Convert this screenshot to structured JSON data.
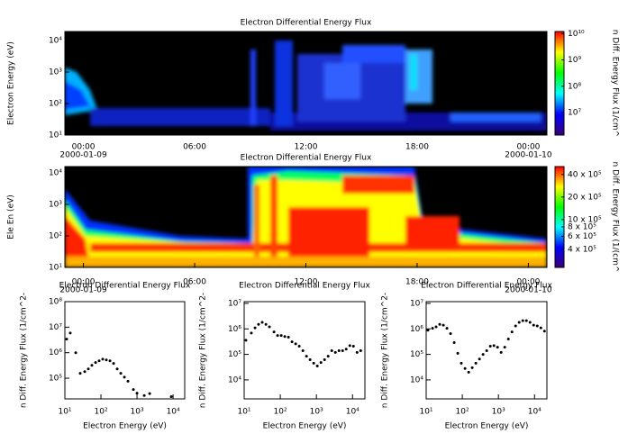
{
  "chart_data": [
    {
      "type": "spectrogram",
      "title": "Electron Differential Energy Flux",
      "y_label": "Electron Energy (eV)",
      "xlim": [
        -1,
        25
      ],
      "xticks": [
        {
          "value": 0,
          "label": "00:00"
        },
        {
          "value": 6,
          "label": "06:00"
        },
        {
          "value": 12,
          "label": "12:00"
        },
        {
          "value": 18,
          "label": "18:00"
        },
        {
          "value": 24,
          "label": "00:00"
        }
      ],
      "xtick_dates": [
        {
          "value": 0,
          "label": "2000-01-09"
        },
        {
          "value": 24,
          "label": "2000-01-10"
        }
      ],
      "ylim": [
        10,
        19400
      ],
      "ylog": true,
      "yticks": [
        {
          "value": 10,
          "label": "10¹"
        },
        {
          "value": 100,
          "label": "10²"
        },
        {
          "value": 1000,
          "label": "10³"
        },
        {
          "value": 10000,
          "label": "10⁴"
        }
      ],
      "colorbar": {
        "label": "n Diff. Energy Flux (1/cm^",
        "log": true,
        "zlim": [
          1400000,
          12000000000
        ],
        "zticks": [
          {
            "value": 10000000,
            "label": "10⁷"
          },
          {
            "value": 100000000,
            "label": "10⁸"
          },
          {
            "value": 1000000000,
            "label": "10⁹"
          },
          {
            "value": 10000000000,
            "label": "10¹⁰"
          }
        ],
        "colormap": [
          "#3a0078",
          "#0000ff",
          "#00ffff",
          "#00ff00",
          "#ffff00",
          "#ff0000"
        ]
      }
    },
    {
      "type": "spectrogram",
      "title": "Electron Differential Energy Flux",
      "y_label": "Ele En (eV)",
      "xlim": [
        -1,
        25
      ],
      "xticks": [
        {
          "value": 0,
          "label": "00:00"
        },
        {
          "value": 6,
          "label": "06:00"
        },
        {
          "value": 12,
          "label": "12:00"
        },
        {
          "value": 18,
          "label": "18:00"
        },
        {
          "value": 24,
          "label": "00:00"
        }
      ],
      "xtick_dates": [
        {
          "value": 0,
          "label": "2000-01-09"
        },
        {
          "value": 24,
          "label": "2000-01-10"
        }
      ],
      "ylim": [
        10,
        15800
      ],
      "ylog": true,
      "yticks": [
        {
          "value": 10,
          "label": "10¹"
        },
        {
          "value": 100,
          "label": "10²"
        },
        {
          "value": 1000,
          "label": "10³"
        },
        {
          "value": 10000,
          "label": "10⁴"
        }
      ],
      "colorbar": {
        "label": "n Diff. Energy Flux (1/(cm^",
        "log": true,
        "zlim": [
          230000,
          5100000
        ],
        "zticks": [
          {
            "value": 400000,
            "label": "4 x 10⁵"
          },
          {
            "value": 600000,
            "label": "6 x 10⁵"
          },
          {
            "value": 800000,
            "label": "8 x 10⁵"
          },
          {
            "value": 1000000,
            "label": "10 x 10⁵"
          },
          {
            "value": 2000000,
            "label": "20 x 10⁵"
          },
          {
            "value": 4000000,
            "label": "40 x 10⁵"
          }
        ],
        "colormap": [
          "#3a0078",
          "#0000ff",
          "#00ffff",
          "#00ff00",
          "#ffff00",
          "#ff0000"
        ]
      }
    },
    {
      "type": "scatter",
      "title": "Electron Differential Energy Flux",
      "x_label": "Electron Energy (eV)",
      "y_label": "n Diff. Energy Flux (1/cm^2-",
      "xlog": true,
      "ylog": true,
      "color": "#000000",
      "xlim": [
        10,
        21000
      ],
      "ylim": [
        15500,
        100000000
      ],
      "xticks": [
        {
          "value": 10,
          "label": "10¹"
        },
        {
          "value": 100,
          "label": "10²"
        },
        {
          "value": 1000,
          "label": "10³"
        },
        {
          "value": 10000,
          "label": "10⁴"
        }
      ],
      "yticks": [
        {
          "value": 100000,
          "label": "10⁵"
        },
        {
          "value": 1000000,
          "label": "10⁶"
        },
        {
          "value": 10000000,
          "label": "10⁷"
        },
        {
          "value": 100000000,
          "label": "10⁸"
        }
      ],
      "x": [
        11.2,
        14.1,
        20,
        26.6,
        35.5,
        44.7,
        56,
        71,
        89,
        112,
        141,
        178,
        224,
        282,
        355,
        447,
        562,
        794,
        1000,
        1585,
        2239,
        8900
      ],
      "values": [
        3400000,
        5900000,
        1000000,
        155000,
        180000,
        230000,
        320000,
        410000,
        480000,
        560000,
        520000,
        480000,
        380000,
        230000,
        155000,
        110000,
        76000,
        36000,
        26000,
        21000,
        25000,
        19000
      ]
    },
    {
      "type": "scatter",
      "title": "Electron Differential Energy Flux",
      "x_label": "Electron Energy (eV)",
      "y_label": "n Diff. Energy Flux (1/cm^2-",
      "xlog": true,
      "ylog": true,
      "color": "#000000",
      "xlim": [
        10,
        22000
      ],
      "ylim": [
        1800,
        11700000
      ],
      "xticks": [
        {
          "value": 10,
          "label": "10¹"
        },
        {
          "value": 100,
          "label": "10²"
        },
        {
          "value": 1000,
          "label": "10³"
        },
        {
          "value": 10000,
          "label": "10⁴"
        }
      ],
      "yticks": [
        {
          "value": 10000,
          "label": "10⁴"
        },
        {
          "value": 100000,
          "label": "10⁵"
        },
        {
          "value": 1000000,
          "label": "10⁶"
        },
        {
          "value": 10000000,
          "label": "10⁷"
        }
      ],
      "x": [
        11.2,
        15.8,
        20,
        25,
        31.6,
        40,
        50,
        67,
        84,
        106,
        133,
        168,
        211,
        266,
        335,
        422,
        531,
        668,
        841,
        1059,
        1334,
        1679,
        2113,
        2661,
        3350,
        4217,
        5309,
        6683,
        8414,
        10593,
        13335,
        16788
      ],
      "values": [
        360000,
        690000,
        1100000,
        1500000,
        1800000,
        1500000,
        1200000,
        760000,
        550000,
        550000,
        500000,
        470000,
        310000,
        260000,
        210000,
        140000,
        85000,
        62000,
        45000,
        35000,
        48000,
        62000,
        85000,
        140000,
        120000,
        140000,
        140000,
        160000,
        220000,
        210000,
        120000,
        140000
      ]
    },
    {
      "type": "scatter",
      "title": "Electron Differential Energy Flux",
      "x_label": "Electron Energy (eV)",
      "y_label": "n Diff. Energy Flux (1/cm^2-",
      "xlog": true,
      "ylog": true,
      "color": "#000000",
      "xlim": [
        10,
        22000
      ],
      "ylim": [
        1800,
        11700000
      ],
      "xticks": [
        {
          "value": 10,
          "label": "10¹"
        },
        {
          "value": 100,
          "label": "10²"
        },
        {
          "value": 1000,
          "label": "10³"
        },
        {
          "value": 10000,
          "label": "10⁴"
        }
      ],
      "yticks": [
        {
          "value": 10000,
          "label": "10⁴"
        },
        {
          "value": 100000,
          "label": "10⁵"
        },
        {
          "value": 1000000,
          "label": "10⁶"
        },
        {
          "value": 10000000,
          "label": "10⁷"
        }
      ],
      "x": [
        11.2,
        15,
        18.8,
        23.7,
        29.9,
        37.6,
        47.3,
        59.6,
        75,
        94,
        119,
        150,
        188,
        237,
        299,
        376,
        473,
        596,
        750,
        944,
        1189,
        1496,
        1884,
        2371,
        2985,
        3758,
        4732,
        5957,
        7499,
        9441,
        11885,
        14962,
        18836
      ],
      "values": [
        890000,
        1050000,
        1200000,
        1500000,
        1400000,
        1050000,
        650000,
        290000,
        110000,
        45000,
        28000,
        20000,
        30000,
        45000,
        66000,
        100000,
        140000,
        210000,
        220000,
        190000,
        120000,
        190000,
        400000,
        760000,
        1300000,
        1800000,
        2100000,
        2100000,
        1800000,
        1400000,
        1300000,
        1100000,
        820000
      ]
    }
  ]
}
